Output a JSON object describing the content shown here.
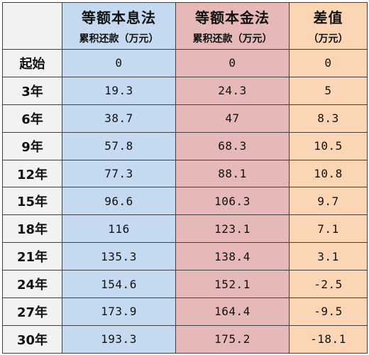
{
  "headers": {
    "col_a": {
      "title": "等额本息法",
      "sub": "累积还款（万元）"
    },
    "col_b": {
      "title": "等额本金法",
      "sub": "累积还款（万元）"
    },
    "col_c": {
      "title": "差值",
      "sub": "（万元）"
    }
  },
  "rows": [
    {
      "label": "起始",
      "a": "0",
      "b": "0",
      "c": "0"
    },
    {
      "label": "3年",
      "a": "19.3",
      "b": "24.3",
      "c": "5"
    },
    {
      "label": "6年",
      "a": "38.7",
      "b": "47",
      "c": "8.3"
    },
    {
      "label": "9年",
      "a": "57.8",
      "b": "68.3",
      "c": "10.5"
    },
    {
      "label": "12年",
      "a": "77.3",
      "b": "88.1",
      "c": "10.8"
    },
    {
      "label": "15年",
      "a": "96.6",
      "b": "106.3",
      "c": "9.7"
    },
    {
      "label": "18年",
      "a": "116",
      "b": "123.1",
      "c": "7.1"
    },
    {
      "label": "21年",
      "a": "135.3",
      "b": "138.4",
      "c": "3.1"
    },
    {
      "label": "24年",
      "a": "154.6",
      "b": "152.1",
      "c": "-2.5"
    },
    {
      "label": "27年",
      "a": "173.9",
      "b": "164.4",
      "c": "-9.5"
    },
    {
      "label": "30年",
      "a": "193.3",
      "b": "175.2",
      "c": "-18.1"
    }
  ],
  "colors": {
    "col_a": "#c5d9f1",
    "col_b": "#e6b8b7",
    "col_c": "#fcd5b4",
    "label": "#f2f2f2"
  }
}
